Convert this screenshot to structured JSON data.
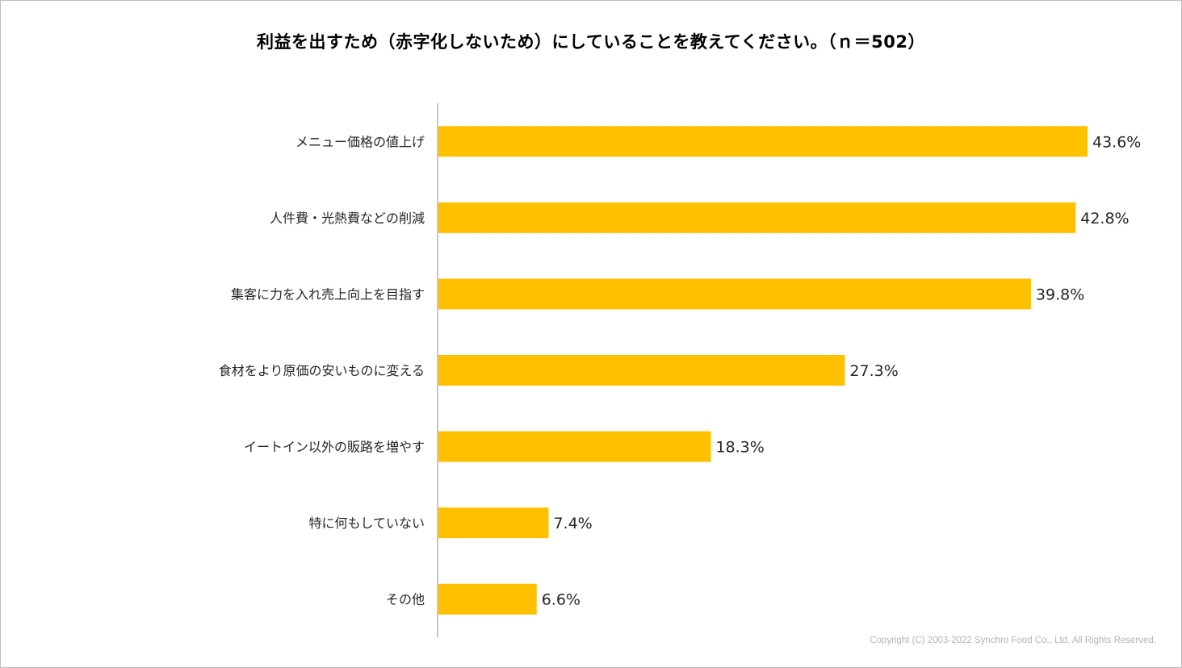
{
  "chart_data": {
    "type": "bar",
    "orientation": "horizontal",
    "title": "利益を出すため（赤字化しないため）にしていることを教えてください。（ｎ＝502）",
    "categories": [
      "メニュー価格の値上げ",
      "人件費・光熱費などの削減",
      "集客に力を入れ売上向上を目指す",
      "食材をより原価の安いものに変える",
      "イートイン以外の販路を増やす",
      "特に何もしていない",
      "その他"
    ],
    "values": [
      43.6,
      42.8,
      39.8,
      27.3,
      18.3,
      7.4,
      6.6
    ],
    "value_labels": [
      "43.6%",
      "42.8%",
      "39.8%",
      "27.3%",
      "18.3%",
      "7.4%",
      "6.6%"
    ],
    "unit": "%",
    "xlim": [
      0,
      43.6
    ],
    "bar_color": "#FFC000",
    "grid": false,
    "xlabel": "",
    "ylabel": ""
  },
  "footer": {
    "copyright": "Copyright (C) 2003-2022  Synchro Food Co., Ltd. All Rights Reserved."
  }
}
